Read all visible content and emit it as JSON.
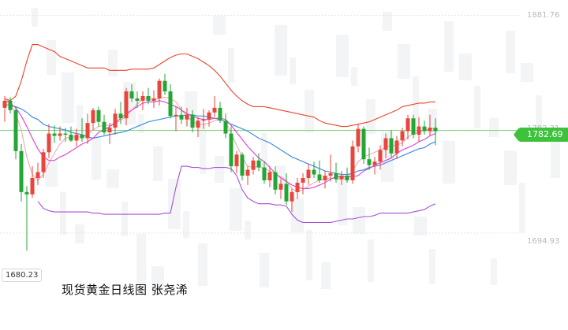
{
  "caption": "现货黄金日线图 张尧浠",
  "axis": {
    "top_label": "1881.76",
    "mid_label": "1782.31",
    "bottom_label": "1694.93",
    "low_label": "1680.23"
  },
  "last_price": "1782.69",
  "colors": {
    "up": "#e8453c",
    "down": "#22a733",
    "upper_band": "#e8452c",
    "lower_band": "#a64fd6",
    "ma_fast": "#e049d6",
    "ma_slow": "#3f8fe0",
    "ma_fast2": "#f2a3a3",
    "price_line": "#7fd87a"
  },
  "chart_data": {
    "type": "candlestick",
    "title": "现货黄金日线图",
    "y_labels": [
      "1881.76",
      "1782.31",
      "1694.93",
      "1680.23"
    ],
    "ylim": [
      1672,
      1882
    ],
    "last_price": 1782.69,
    "candles": [
      [
        1802,
        1812,
        1790,
        1808
      ],
      [
        1808,
        1811,
        1797,
        1800
      ],
      [
        1800,
        1803,
        1758,
        1765
      ],
      [
        1765,
        1771,
        1722,
        1730
      ],
      [
        1730,
        1735,
        1680,
        1728
      ],
      [
        1728,
        1752,
        1725,
        1742
      ],
      [
        1742,
        1755,
        1736,
        1747
      ],
      [
        1747,
        1767,
        1742,
        1764
      ],
      [
        1764,
        1788,
        1759,
        1780
      ],
      [
        1780,
        1787,
        1772,
        1778
      ],
      [
        1778,
        1786,
        1774,
        1780
      ],
      [
        1780,
        1785,
        1773,
        1779
      ],
      [
        1779,
        1786,
        1773,
        1774
      ],
      [
        1774,
        1784,
        1769,
        1779
      ],
      [
        1779,
        1793,
        1773,
        1776
      ],
      [
        1776,
        1797,
        1771,
        1789
      ],
      [
        1789,
        1802,
        1783,
        1800
      ],
      [
        1800,
        1803,
        1786,
        1790
      ],
      [
        1790,
        1796,
        1779,
        1781
      ],
      [
        1781,
        1789,
        1771,
        1785
      ],
      [
        1785,
        1801,
        1779,
        1797
      ],
      [
        1797,
        1807,
        1788,
        1793
      ],
      [
        1793,
        1819,
        1787,
        1816
      ],
      [
        1816,
        1822,
        1807,
        1810
      ],
      [
        1810,
        1816,
        1802,
        1808
      ],
      [
        1808,
        1816,
        1800,
        1812
      ],
      [
        1812,
        1819,
        1805,
        1808
      ],
      [
        1808,
        1817,
        1802,
        1810
      ],
      [
        1810,
        1827,
        1804,
        1825
      ],
      [
        1825,
        1831,
        1813,
        1816
      ],
      [
        1816,
        1822,
        1793,
        1795
      ],
      [
        1795,
        1803,
        1782,
        1796
      ],
      [
        1796,
        1803,
        1788,
        1792
      ],
      [
        1792,
        1802,
        1786,
        1796
      ],
      [
        1796,
        1800,
        1781,
        1785
      ],
      [
        1785,
        1794,
        1777,
        1791
      ],
      [
        1791,
        1801,
        1784,
        1792
      ],
      [
        1792,
        1800,
        1786,
        1798
      ],
      [
        1798,
        1812,
        1794,
        1802
      ],
      [
        1802,
        1807,
        1789,
        1791
      ],
      [
        1791,
        1797,
        1776,
        1780
      ],
      [
        1780,
        1786,
        1747,
        1752
      ],
      [
        1752,
        1765,
        1746,
        1762
      ],
      [
        1762,
        1764,
        1740,
        1744
      ],
      [
        1744,
        1752,
        1736,
        1749
      ],
      [
        1749,
        1760,
        1745,
        1757
      ],
      [
        1757,
        1763,
        1748,
        1751
      ],
      [
        1751,
        1756,
        1737,
        1740
      ],
      [
        1740,
        1752,
        1734,
        1747
      ],
      [
        1747,
        1752,
        1728,
        1732
      ],
      [
        1732,
        1741,
        1724,
        1737
      ],
      [
        1737,
        1746,
        1719,
        1722
      ],
      [
        1722,
        1733,
        1713,
        1730
      ],
      [
        1730,
        1742,
        1724,
        1738
      ],
      [
        1738,
        1746,
        1728,
        1742
      ],
      [
        1742,
        1754,
        1736,
        1749
      ],
      [
        1749,
        1756,
        1742,
        1745
      ],
      [
        1745,
        1757,
        1738,
        1740
      ],
      [
        1740,
        1748,
        1733,
        1744
      ],
      [
        1744,
        1762,
        1739,
        1746
      ],
      [
        1746,
        1755,
        1738,
        1741
      ],
      [
        1741,
        1748,
        1736,
        1744
      ],
      [
        1744,
        1751,
        1738,
        1740
      ],
      [
        1740,
        1774,
        1737,
        1769
      ],
      [
        1769,
        1788,
        1764,
        1784
      ],
      [
        1784,
        1786,
        1754,
        1758
      ],
      [
        1758,
        1768,
        1749,
        1753
      ],
      [
        1753,
        1760,
        1745,
        1756
      ],
      [
        1756,
        1770,
        1749,
        1766
      ],
      [
        1766,
        1780,
        1759,
        1776
      ],
      [
        1776,
        1783,
        1759,
        1763
      ],
      [
        1763,
        1778,
        1758,
        1774
      ],
      [
        1774,
        1785,
        1769,
        1782
      ],
      [
        1782,
        1796,
        1775,
        1793
      ],
      [
        1793,
        1796,
        1776,
        1779
      ],
      [
        1779,
        1794,
        1773,
        1786
      ],
      [
        1786,
        1791,
        1779,
        1782
      ],
      [
        1782,
        1796,
        1778,
        1785
      ],
      [
        1785,
        1793,
        1770,
        1782
      ]
    ],
    "bands": {
      "upper": [
        1810,
        1808,
        1812,
        1825,
        1842,
        1856,
        1856,
        1854,
        1852,
        1850,
        1846,
        1844,
        1842,
        1840,
        1838,
        1836,
        1836,
        1836,
        1836,
        1834,
        1834,
        1834,
        1834,
        1835,
        1835,
        1835,
        1835,
        1836,
        1839,
        1842,
        1845,
        1847,
        1848,
        1848,
        1846,
        1844,
        1841,
        1838,
        1834,
        1829,
        1823,
        1817,
        1812,
        1808,
        1805,
        1803,
        1803,
        1803,
        1802,
        1801,
        1800,
        1799,
        1798,
        1797,
        1796,
        1795,
        1794,
        1791,
        1789,
        1788,
        1787,
        1786,
        1786,
        1787,
        1788,
        1789,
        1790,
        1792,
        1794,
        1796,
        1798,
        1800,
        1803,
        1804,
        1805,
        1806,
        1806,
        1807,
        1807
      ],
      "lower": [
        null,
        null,
        null,
        null,
        null,
        null,
        1722,
        1716,
        1714,
        1713,
        1713,
        1713,
        1713,
        1713,
        1713,
        1713,
        1712,
        1712,
        1711,
        1711,
        1711,
        1711,
        1711,
        1711,
        1711,
        1711,
        1711,
        1711,
        1711,
        1712,
        1712,
        1734,
        1752,
        1752,
        1751,
        1751,
        1750,
        1750,
        1751,
        1751,
        1751,
        1750,
        1744,
        1732,
        1725,
        1722,
        1720,
        1720,
        1720,
        1719,
        1719,
        1718,
        1711,
        1706,
        1704,
        1704,
        1704,
        1704,
        1704,
        1704,
        1705,
        1706,
        1707,
        1707,
        1708,
        1709,
        1709,
        1710,
        1712,
        1712,
        1712,
        1712,
        1712,
        1712,
        1713,
        1714,
        1715,
        1718,
        1720
      ],
      "ma_slow": [
        1805,
        1804,
        1803,
        1801,
        1798,
        1794,
        1792,
        1788,
        1786,
        1785,
        1784,
        1783,
        1781,
        1780,
        1779,
        1777,
        1776,
        1777,
        1778,
        1779,
        1780,
        1781,
        1782,
        1784,
        1786,
        1788,
        1790,
        1791,
        1792,
        1793,
        1794,
        1795,
        1795,
        1796,
        1796,
        1795,
        1795,
        1794,
        1793,
        1792,
        1790,
        1788,
        1786,
        1784,
        1782,
        1779,
        1776,
        1774,
        1772,
        1769,
        1766,
        1763,
        1760,
        1758,
        1756,
        1754,
        1752,
        1750,
        1748,
        1747,
        1746,
        1745,
        1745,
        1746,
        1748,
        1749,
        1751,
        1752,
        1753,
        1755,
        1757,
        1759,
        1761,
        1763,
        1765,
        1767,
        1768,
        1771,
        1773
      ],
      "ma_fast": [
        1808,
        1806,
        1802,
        1795,
        1786,
        1776,
        1767,
        1760,
        1757,
        1757,
        1760,
        1762,
        1765,
        1768,
        1771,
        1773,
        1776,
        1781,
        1783,
        1786,
        1789,
        1793,
        1797,
        1800,
        1803,
        1806,
        1807,
        1807,
        1808,
        1807,
        1805,
        1803,
        1800,
        1797,
        1795,
        1793,
        1792,
        1792,
        1793,
        1793,
        1792,
        1787,
        1781,
        1775,
        1769,
        1764,
        1759,
        1756,
        1751,
        1746,
        1742,
        1739,
        1736,
        1734,
        1733,
        1733,
        1734,
        1736,
        1738,
        1741,
        1743,
        1743,
        1743,
        1743,
        1744,
        1748,
        1750,
        1753,
        1755,
        1757,
        1759,
        1763,
        1766,
        1768,
        1770,
        1773,
        1775,
        1778,
        1780
      ],
      "ma_fast2": [
        1810,
        1806,
        1797,
        1783,
        1760,
        1745,
        1740,
        1745,
        1755,
        1763,
        1771,
        1776,
        1777,
        1777,
        1777,
        1779,
        1783,
        1786,
        1787,
        1787,
        1789,
        1791,
        1795,
        1800,
        1805,
        1810,
        1810,
        1809,
        1810,
        1811,
        1810,
        1807,
        1800,
        1795,
        1790,
        1788,
        1788,
        1789,
        1791,
        1792,
        1790,
        1780,
        1770,
        1760,
        1752,
        1751,
        1752,
        1750,
        1748,
        1745,
        1743,
        1740,
        1733,
        1730,
        1732,
        1735,
        1738,
        1740,
        1741,
        1742,
        1741,
        1741,
        1742,
        1748,
        1756,
        1760,
        1762,
        1764,
        1766,
        1768,
        1770,
        1770,
        1772,
        1777,
        1780,
        1781,
        1783,
        1784,
        1784
      ]
    }
  }
}
